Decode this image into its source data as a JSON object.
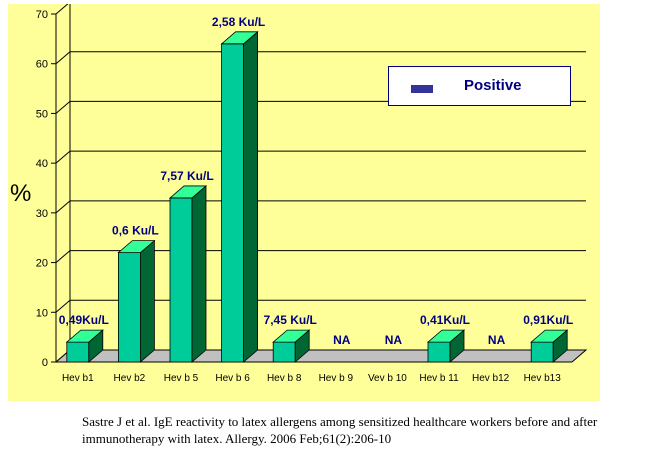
{
  "chart_data": {
    "type": "bar",
    "categories": [
      "Hev b1",
      "Hev b2",
      "Hev b 5",
      "Hev b 6",
      "Hev b 8",
      "Hev b 9",
      "Vev b 10",
      "Hev b 11",
      "Hev b12",
      "Hev b13"
    ],
    "series": [
      {
        "name": "Positive",
        "values": [
          4,
          22,
          33,
          64,
          4,
          0,
          0,
          4,
          0,
          4
        ]
      }
    ],
    "data_labels": [
      "0,49Ku/L",
      "0,6 Ku/L",
      "7,57 Ku/L",
      "2,58 Ku/L",
      "7,45 Ku/L",
      "NA",
      "NA",
      "0,41Ku/L",
      "NA",
      "0,91Ku/L"
    ],
    "ylabel": "%",
    "ylim": [
      0,
      70
    ],
    "yticks": [
      0,
      10,
      20,
      30,
      40,
      50,
      60,
      70
    ],
    "grid": true,
    "legend_position": "top-right",
    "colors": {
      "bar_front": "#00cc99",
      "bar_side": "#006633",
      "bar_top": "#33ff99",
      "label": "#000080",
      "legend_swatch": "#333399",
      "background": "#ffff99"
    }
  },
  "caption": {
    "line1": "Sastre J et al. IgE reactivity to latex allergens among sensitized healthcare workers before and after",
    "line2": "immunotherapy with latex. Allergy. 2006 Feb;61(2):206-10"
  }
}
